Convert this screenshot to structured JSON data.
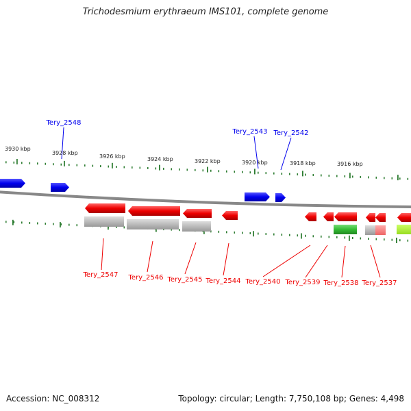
{
  "title": "Trichodesmium erythraeum IMS101, complete genome",
  "footer": {
    "accession": "Accession: NC_008312",
    "topology": "Topology: circular; Length: 7,750,108 bp; Genes: 4,498"
  },
  "colors": {
    "forward_gene": "#0000ee",
    "reverse_gene": "#ee0000",
    "backbone": "#888888",
    "tick": "#2e7d32",
    "gray_feature": "#bbbbbb",
    "green_feature": "#33bb33",
    "lime_feature": "#aaee33",
    "pink_feature": "#f08080"
  },
  "scale": {
    "unit": "kbp",
    "ticks": [
      "3930 kbp",
      "3928 kbp",
      "3926 kbp",
      "3924 kbp",
      "3922 kbp",
      "3920 kbp",
      "3918 kbp",
      "3916 kbp"
    ]
  },
  "genes": {
    "forward": [
      "Tery_2548",
      "Tery_2543",
      "Tery_2542"
    ],
    "reverse": [
      "Tery_2547",
      "Tery_2546",
      "Tery_2545",
      "Tery_2544",
      "Tery_2540",
      "Tery_2539",
      "Tery_2538",
      "Tery_2537"
    ]
  }
}
